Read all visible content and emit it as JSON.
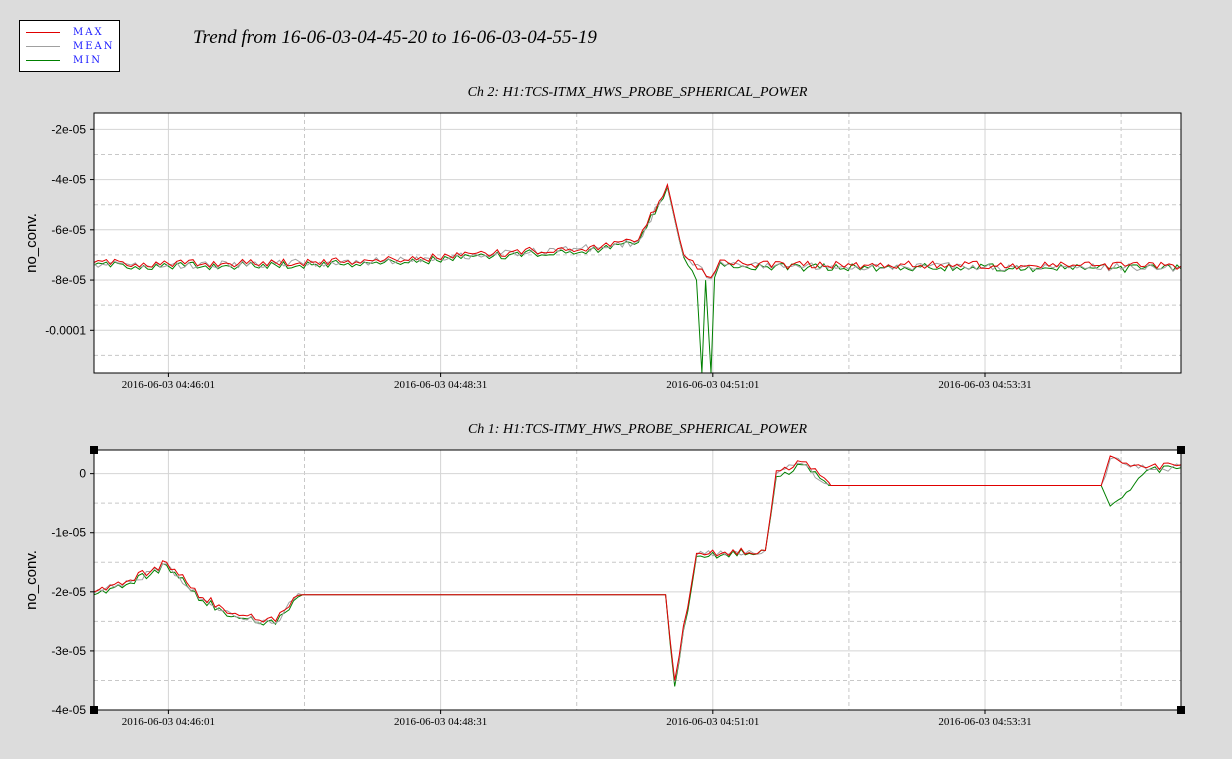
{
  "title": "Trend from 16-06-03-04-45-20 to 16-06-03-04-55-19",
  "legend": [
    {
      "label": "MAX",
      "color": "#e00000"
    },
    {
      "label": "MEAN",
      "color": "#a0a0a0"
    },
    {
      "label": "MIN",
      "color": "#008000"
    }
  ],
  "chart_data": [
    {
      "type": "line",
      "title": "Ch 2: H1:TCS-ITMX_HWS_PROBE_SPHERICAL_POWER",
      "ylabel": "no_conv.",
      "xlabel": "",
      "xlim": [
        "2016-06-03 04:45:20",
        "2016-06-03 04:55:19"
      ],
      "ylim": [
        -0.000117,
        -1.35e-05
      ],
      "x_ticks": [
        "2016-06-03 04:46:01",
        "2016-06-03 04:48:31",
        "2016-06-03 04:51:01",
        "2016-06-03 04:53:31"
      ],
      "y_ticks": [
        {
          "value": -2e-05,
          "label": "-2e-05"
        },
        {
          "value": -4e-05,
          "label": "-4e-05"
        },
        {
          "value": -6e-05,
          "label": "-6e-05"
        },
        {
          "value": -8e-05,
          "label": "-8e-05"
        },
        {
          "value": -0.0001,
          "label": "-0.0001"
        }
      ],
      "grid": true,
      "series": [
        {
          "name": "MAX",
          "color": "#e00000",
          "points": [
            [
              "2016-06-03 04:45:20",
              -7.3e-05
            ],
            [
              "2016-06-03 04:46:01",
              -7.35e-05
            ],
            [
              "2016-06-03 04:47:00",
              -7.3e-05
            ],
            [
              "2016-06-03 04:48:00",
              -7.2e-05
            ],
            [
              "2016-06-03 04:49:00",
              -6.95e-05
            ],
            [
              "2016-06-03 04:50:00",
              -6.65e-05
            ],
            [
              "2016-06-03 04:50:20",
              -6.4e-05
            ],
            [
              "2016-06-03 04:50:36",
              -4.2e-05
            ],
            [
              "2016-06-03 04:50:45",
              -7e-05
            ],
            [
              "2016-06-03 04:51:00",
              -7.9e-05
            ],
            [
              "2016-06-03 04:51:05",
              -7.2e-05
            ],
            [
              "2016-06-03 04:51:20",
              -7.4e-05
            ],
            [
              "2016-06-03 04:53:00",
              -7.4e-05
            ],
            [
              "2016-06-03 04:55:19",
              -7.45e-05
            ]
          ]
        },
        {
          "name": "MEAN",
          "color": "#a0a0a0",
          "points": [
            [
              "2016-06-03 04:45:20",
              -7.35e-05
            ],
            [
              "2016-06-03 04:46:01",
              -7.4e-05
            ],
            [
              "2016-06-03 04:47:00",
              -7.35e-05
            ],
            [
              "2016-06-03 04:48:00",
              -7.25e-05
            ],
            [
              "2016-06-03 04:49:00",
              -7e-05
            ],
            [
              "2016-06-03 04:50:00",
              -6.7e-05
            ],
            [
              "2016-06-03 04:50:20",
              -6.45e-05
            ],
            [
              "2016-06-03 04:50:36",
              -4.25e-05
            ],
            [
              "2016-06-03 04:50:45",
              -7.05e-05
            ],
            [
              "2016-06-03 04:51:00",
              -7.95e-05
            ],
            [
              "2016-06-03 04:51:05",
              -7.25e-05
            ],
            [
              "2016-06-03 04:51:20",
              -7.45e-05
            ],
            [
              "2016-06-03 04:53:00",
              -7.45e-05
            ],
            [
              "2016-06-03 04:55:19",
              -7.5e-05
            ]
          ]
        },
        {
          "name": "MIN",
          "color": "#008000",
          "points": [
            [
              "2016-06-03 04:45:20",
              -7.4e-05
            ],
            [
              "2016-06-03 04:46:01",
              -7.45e-05
            ],
            [
              "2016-06-03 04:47:00",
              -7.4e-05
            ],
            [
              "2016-06-03 04:48:00",
              -7.3e-05
            ],
            [
              "2016-06-03 04:49:00",
              -7.05e-05
            ],
            [
              "2016-06-03 04:50:00",
              -6.75e-05
            ],
            [
              "2016-06-03 04:50:20",
              -6.5e-05
            ],
            [
              "2016-06-03 04:50:36",
              -4.3e-05
            ],
            [
              "2016-06-03 04:50:45",
              -7.1e-05
            ],
            [
              "2016-06-03 04:50:52",
              -8e-05
            ],
            [
              "2016-06-03 04:50:55",
              -0.000117
            ],
            [
              "2016-06-03 04:50:57",
              -8e-05
            ],
            [
              "2016-06-03 04:51:00",
              -0.000117
            ],
            [
              "2016-06-03 04:51:02",
              -7.9e-05
            ],
            [
              "2016-06-03 04:51:05",
              -7.3e-05
            ],
            [
              "2016-06-03 04:51:20",
              -7.5e-05
            ],
            [
              "2016-06-03 04:53:00",
              -7.5e-05
            ],
            [
              "2016-06-03 04:55:19",
              -7.55e-05
            ]
          ]
        }
      ]
    },
    {
      "type": "line",
      "title": "Ch 1: H1:TCS-ITMY_HWS_PROBE_SPHERICAL_POWER",
      "ylabel": "no_conv.",
      "xlabel": "",
      "xlim": [
        "2016-06-03 04:45:20",
        "2016-06-03 04:55:19"
      ],
      "ylim": [
        -4e-05,
        4e-06
      ],
      "x_ticks": [
        "2016-06-03 04:46:01",
        "2016-06-03 04:48:31",
        "2016-06-03 04:51:01",
        "2016-06-03 04:53:31"
      ],
      "y_ticks": [
        {
          "value": 0,
          "label": "0"
        },
        {
          "value": -1e-05,
          "label": "-1e-05"
        },
        {
          "value": -2e-05,
          "label": "-2e-05"
        },
        {
          "value": -3e-05,
          "label": "-3e-05"
        },
        {
          "value": -4e-05,
          "label": "-4e-05"
        }
      ],
      "grid": true,
      "series": [
        {
          "name": "MAX",
          "color": "#e00000",
          "points": [
            [
              "2016-06-03 04:45:20",
              -2e-05
            ],
            [
              "2016-06-03 04:45:40",
              -1.8e-05
            ],
            [
              "2016-06-03 04:46:00",
              -1.5e-05
            ],
            [
              "2016-06-03 04:46:20",
              -2.1e-05
            ],
            [
              "2016-06-03 04:46:40",
              -2.4e-05
            ],
            [
              "2016-06-03 04:47:00",
              -2.5e-05
            ],
            [
              "2016-06-03 04:47:10",
              -2.1e-05
            ],
            [
              "2016-06-03 04:47:15",
              -2.05e-05
            ],
            [
              "2016-06-03 04:50:35",
              -2.05e-05
            ],
            [
              "2016-06-03 04:50:40",
              -3.5e-05
            ],
            [
              "2016-06-03 04:50:52",
              -1.35e-05
            ],
            [
              "2016-06-03 04:51:30",
              -1.3e-05
            ],
            [
              "2016-06-03 04:51:36",
              5e-07
            ],
            [
              "2016-06-03 04:51:50",
              2e-06
            ],
            [
              "2016-06-03 04:52:05",
              -1.5e-06
            ],
            [
              "2016-06-03 04:52:06",
              -2e-06
            ],
            [
              "2016-06-03 04:54:35",
              -2e-06
            ],
            [
              "2016-06-03 04:54:40",
              3e-06
            ],
            [
              "2016-06-03 04:55:00",
              1e-06
            ],
            [
              "2016-06-03 04:55:19",
              1.5e-06
            ]
          ]
        },
        {
          "name": "MEAN",
          "color": "#a0a0a0",
          "points": [
            [
              "2016-06-03 04:45:20",
              -2.03e-05
            ],
            [
              "2016-06-03 04:45:40",
              -1.83e-05
            ],
            [
              "2016-06-03 04:46:00",
              -1.53e-05
            ],
            [
              "2016-06-03 04:46:20",
              -2.13e-05
            ],
            [
              "2016-06-03 04:46:40",
              -2.43e-05
            ],
            [
              "2016-06-03 04:47:00",
              -2.53e-05
            ],
            [
              "2016-06-03 04:47:10",
              -2.13e-05
            ],
            [
              "2016-06-03 04:47:15",
              -2.05e-05
            ],
            [
              "2016-06-03 04:50:35",
              -2.05e-05
            ],
            [
              "2016-06-03 04:50:40",
              -3.53e-05
            ],
            [
              "2016-06-03 04:50:52",
              -1.38e-05
            ],
            [
              "2016-06-03 04:51:30",
              -1.3e-05
            ],
            [
              "2016-06-03 04:51:36",
              0.0
            ],
            [
              "2016-06-03 04:51:50",
              1.7e-06
            ],
            [
              "2016-06-03 04:52:05",
              -1.8e-06
            ],
            [
              "2016-06-03 04:52:06",
              -2e-06
            ],
            [
              "2016-06-03 04:54:35",
              -2e-06
            ],
            [
              "2016-06-03 04:54:40",
              2.5e-06
            ],
            [
              "2016-06-03 04:55:00",
              7e-07
            ],
            [
              "2016-06-03 04:55:19",
              1.2e-06
            ]
          ]
        },
        {
          "name": "MIN",
          "color": "#008000",
          "points": [
            [
              "2016-06-03 04:45:20",
              -2.05e-05
            ],
            [
              "2016-06-03 04:45:40",
              -1.85e-05
            ],
            [
              "2016-06-03 04:46:00",
              -1.55e-05
            ],
            [
              "2016-06-03 04:46:20",
              -2.15e-05
            ],
            [
              "2016-06-03 04:46:40",
              -2.45e-05
            ],
            [
              "2016-06-03 04:47:00",
              -2.55e-05
            ],
            [
              "2016-06-03 04:47:10",
              -2.15e-05
            ],
            [
              "2016-06-03 04:47:15",
              -2.05e-05
            ],
            [
              "2016-06-03 04:50:35",
              -2.05e-05
            ],
            [
              "2016-06-03 04:50:40",
              -3.6e-05
            ],
            [
              "2016-06-03 04:50:52",
              -1.4e-05
            ],
            [
              "2016-06-03 04:51:30",
              -1.3e-05
            ],
            [
              "2016-06-03 04:51:36",
              -5e-07
            ],
            [
              "2016-06-03 04:51:50",
              1.5e-06
            ],
            [
              "2016-06-03 04:52:05",
              -2e-06
            ],
            [
              "2016-06-03 04:52:06",
              -2e-06
            ],
            [
              "2016-06-03 04:54:35",
              -2e-06
            ],
            [
              "2016-06-03 04:54:40",
              -5.5e-06
            ],
            [
              "2016-06-03 04:55:00",
              5e-07
            ],
            [
              "2016-06-03 04:55:19",
              1e-06
            ]
          ]
        }
      ]
    }
  ]
}
